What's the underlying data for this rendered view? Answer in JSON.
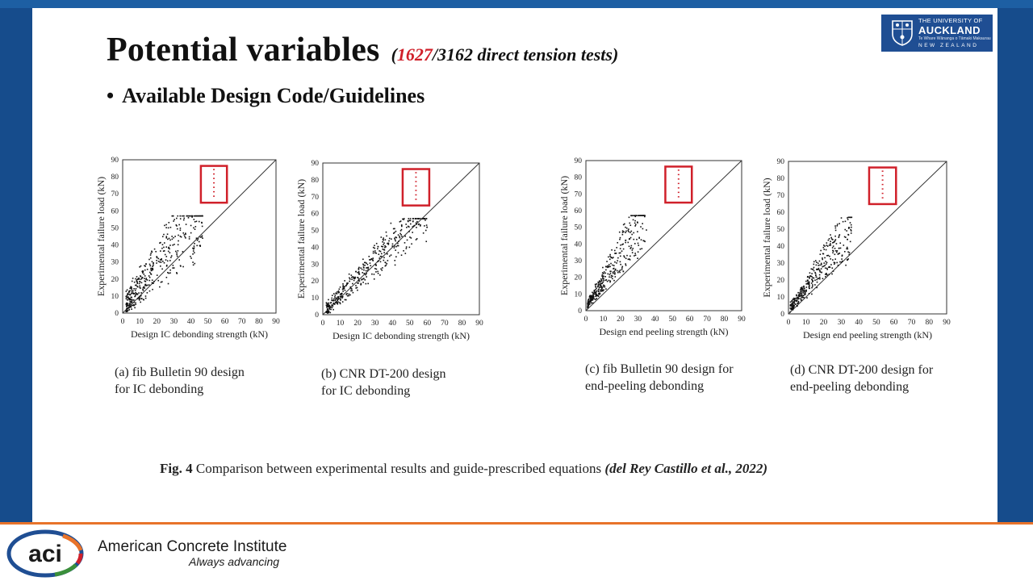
{
  "slide": {
    "title": "Potential variables",
    "subtitle_open": "(",
    "subtitle_highlight": "1627",
    "subtitle_rest": "/3162 direct tension tests)",
    "bullet": "Available Design Code/Guidelines",
    "highlight_color": "#d0202a"
  },
  "university_logo": {
    "line1": "THE UNIVERSITY OF",
    "line2": "AUCKLAND",
    "line3": "Te Whare Wānanga o Tāmaki Makaurau",
    "line4": "NEW ZEALAND"
  },
  "captions": [
    {
      "line1": "(a) fib Bulletin 90 design",
      "line2": "for IC debonding"
    },
    {
      "line1": "(b) CNR DT-200 design",
      "line2": "for IC debonding"
    },
    {
      "line1": "(c) fib Bulletin 90 design for",
      "line2": "end-peeling debonding"
    },
    {
      "line1": "(d) CNR DT-200 design for",
      "line2": "end-peeling debonding"
    }
  ],
  "figure_caption": {
    "label": "Fig. 4",
    "text": "Comparison between experimental results and guide-prescribed equations",
    "citation": "(del Rey Castillo et al., 2022)"
  },
  "footer": {
    "logo_text": "aci",
    "org_name": "American Concrete Institute",
    "tagline": "Always advancing",
    "brand_colors": [
      "#1f4e93",
      "#e8732a",
      "#d0202a",
      "#3a8f3a"
    ]
  },
  "chart_data": [
    {
      "type": "scatter",
      "xlabel": "Design IC debonding strength (kN)",
      "ylabel": "Experimental failure load (kN)",
      "xlim": [
        0,
        90
      ],
      "ylim": [
        0,
        90
      ],
      "xticks": [
        "0",
        "10",
        "20",
        "30",
        "40",
        "50",
        "60",
        "70",
        "80",
        "90"
      ],
      "yticks": [
        "0",
        "10",
        "20",
        "30",
        "40",
        "50",
        "60",
        "70",
        "80",
        "90"
      ],
      "reference_line": "y = x",
      "legend_marker": "red dotted line in box, top",
      "x_range_data": [
        2,
        55
      ],
      "y_range_data": [
        2,
        57
      ],
      "point_count": 420
    },
    {
      "type": "scatter",
      "xlabel": "Design IC debonding strength (kN)",
      "ylabel": "Experimental failure load (kN)",
      "xlim": [
        0,
        90
      ],
      "ylim": [
        0,
        90
      ],
      "xticks": [
        "0",
        "10",
        "20",
        "30",
        "40",
        "50",
        "60",
        "70",
        "80",
        "90"
      ],
      "yticks": [
        "0",
        "10",
        "20",
        "30",
        "40",
        "50",
        "60",
        "70",
        "80",
        "90"
      ],
      "reference_line": "y = x",
      "legend_marker": "red dotted line in box, top",
      "x_range_data": [
        2,
        62
      ],
      "y_range_data": [
        2,
        57
      ],
      "point_count": 420
    },
    {
      "type": "scatter",
      "xlabel": "Design end peeling strength (kN)",
      "ylabel": "Experimental failure load (kN)",
      "xlim": [
        0,
        90
      ],
      "ylim": [
        0,
        90
      ],
      "xticks": [
        "0",
        "10",
        "20",
        "30",
        "40",
        "50",
        "60",
        "70",
        "80",
        "90"
      ],
      "yticks": [
        "0",
        "10",
        "20",
        "30",
        "40",
        "50",
        "60",
        "70",
        "80",
        "90"
      ],
      "reference_line": "y = x",
      "legend_marker": "red dotted line in box, top",
      "x_range_data": [
        1,
        36
      ],
      "y_range_data": [
        2,
        57
      ],
      "point_count": 360
    },
    {
      "type": "scatter",
      "xlabel": "Design end peeling strength (kN)",
      "ylabel": "Experimental failure load (kN)",
      "xlim": [
        0,
        90
      ],
      "ylim": [
        0,
        90
      ],
      "xticks": [
        "0",
        "10",
        "20",
        "30",
        "40",
        "50",
        "60",
        "70",
        "80",
        "90"
      ],
      "yticks": [
        "0",
        "10",
        "20",
        "30",
        "40",
        "50",
        "60",
        "70",
        "80",
        "90"
      ],
      "reference_line": "y = x",
      "legend_marker": "red dotted line in box, top",
      "x_range_data": [
        1,
        37
      ],
      "y_range_data": [
        2,
        57
      ],
      "point_count": 360
    }
  ]
}
